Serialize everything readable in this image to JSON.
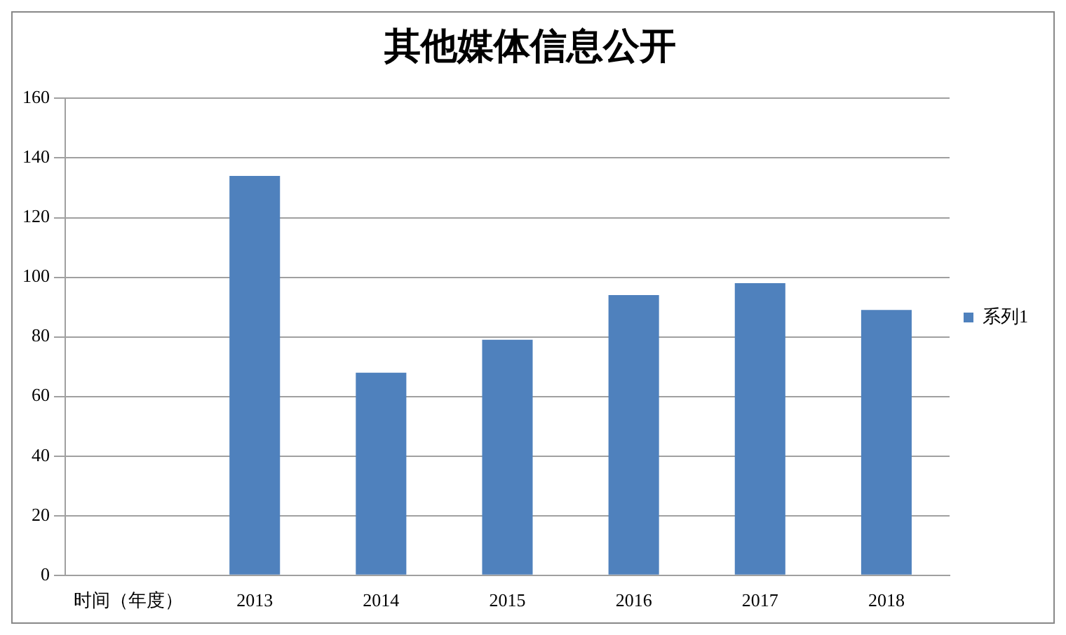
{
  "chart_data": {
    "type": "bar",
    "title": "其他媒体信息公开",
    "categories": [
      "时间（年度）",
      "2013",
      "2014",
      "2015",
      "2016",
      "2017",
      "2018"
    ],
    "series": [
      {
        "name": "系列1",
        "color": "#4f81bd",
        "values": [
          null,
          134,
          68,
          79,
          94,
          98,
          89
        ]
      }
    ],
    "ylim": [
      0,
      160
    ],
    "yticks": [
      0,
      20,
      40,
      60,
      80,
      100,
      120,
      140,
      160
    ],
    "grid": "y",
    "legend": "right"
  }
}
